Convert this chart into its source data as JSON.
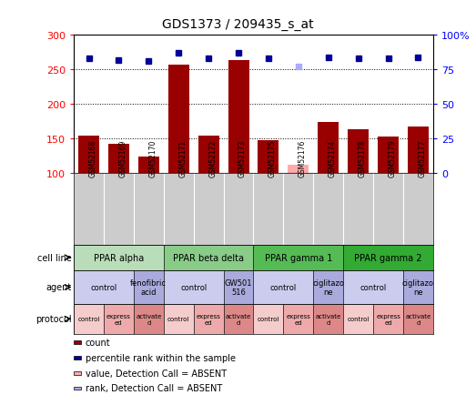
{
  "title": "GDS1373 / 209435_s_at",
  "samples": [
    "GSM52168",
    "GSM52169",
    "GSM52170",
    "GSM52171",
    "GSM52172",
    "GSM52173",
    "GSM52175",
    "GSM52176",
    "GSM52174",
    "GSM52178",
    "GSM52179",
    "GSM52177"
  ],
  "bar_values": [
    155,
    143,
    124,
    257,
    155,
    264,
    148,
    113,
    174,
    164,
    153,
    168
  ],
  "bar_absent": [
    false,
    false,
    false,
    false,
    false,
    false,
    false,
    true,
    false,
    false,
    false,
    false
  ],
  "rank_values": [
    83,
    82,
    81,
    87,
    83,
    87,
    83,
    77,
    84,
    83,
    83,
    84
  ],
  "rank_absent": [
    false,
    false,
    false,
    false,
    false,
    false,
    false,
    true,
    false,
    false,
    false,
    false
  ],
  "bar_color": "#990000",
  "bar_absent_color": "#ffaaaa",
  "rank_color": "#000099",
  "rank_absent_color": "#aaaaff",
  "ylim_left": [
    100,
    300
  ],
  "ylim_right": [
    0,
    100
  ],
  "yticks_left": [
    100,
    150,
    200,
    250,
    300
  ],
  "yticks_right": [
    0,
    25,
    50,
    75,
    100
  ],
  "ytick_labels_right": [
    "0",
    "25",
    "50",
    "75",
    "100%"
  ],
  "cell_lines": [
    {
      "label": "PPAR alpha",
      "span": [
        0,
        3
      ],
      "color": "#b8ddb8"
    },
    {
      "label": "PPAR beta delta",
      "span": [
        3,
        6
      ],
      "color": "#88cc88"
    },
    {
      "label": "PPAR gamma 1",
      "span": [
        6,
        9
      ],
      "color": "#55bb55"
    },
    {
      "label": "PPAR gamma 2",
      "span": [
        9,
        12
      ],
      "color": "#33aa33"
    }
  ],
  "agents": [
    {
      "label": "control",
      "span": [
        0,
        2
      ],
      "color": "#ccccee"
    },
    {
      "label": "fenofibric\nacid",
      "span": [
        2,
        3
      ],
      "color": "#aaaadd"
    },
    {
      "label": "control",
      "span": [
        3,
        5
      ],
      "color": "#ccccee"
    },
    {
      "label": "GW501\n516",
      "span": [
        5,
        6
      ],
      "color": "#aaaadd"
    },
    {
      "label": "control",
      "span": [
        6,
        8
      ],
      "color": "#ccccee"
    },
    {
      "label": "ciglitazo\nne",
      "span": [
        8,
        9
      ],
      "color": "#aaaadd"
    },
    {
      "label": "control",
      "span": [
        9,
        11
      ],
      "color": "#ccccee"
    },
    {
      "label": "ciglitazo\nne",
      "span": [
        11,
        12
      ],
      "color": "#aaaadd"
    }
  ],
  "protocols": [
    {
      "label": "control",
      "span": [
        0,
        1
      ],
      "color": "#f5cccc"
    },
    {
      "label": "express\ned",
      "span": [
        1,
        2
      ],
      "color": "#eeaaaa"
    },
    {
      "label": "activate\nd",
      "span": [
        2,
        3
      ],
      "color": "#dd8888"
    },
    {
      "label": "control",
      "span": [
        3,
        4
      ],
      "color": "#f5cccc"
    },
    {
      "label": "express\ned",
      "span": [
        4,
        5
      ],
      "color": "#eeaaaa"
    },
    {
      "label": "activate\nd",
      "span": [
        5,
        6
      ],
      "color": "#dd8888"
    },
    {
      "label": "control",
      "span": [
        6,
        7
      ],
      "color": "#f5cccc"
    },
    {
      "label": "express\ned",
      "span": [
        7,
        8
      ],
      "color": "#eeaaaa"
    },
    {
      "label": "activate\nd",
      "span": [
        8,
        9
      ],
      "color": "#dd8888"
    },
    {
      "label": "control",
      "span": [
        9,
        10
      ],
      "color": "#f5cccc"
    },
    {
      "label": "express\ned",
      "span": [
        10,
        11
      ],
      "color": "#eeaaaa"
    },
    {
      "label": "activate\nd",
      "span": [
        11,
        12
      ],
      "color": "#dd8888"
    }
  ],
  "row_labels": [
    "cell line",
    "agent",
    "protocol"
  ],
  "legend_items": [
    {
      "color": "#990000",
      "label": "count"
    },
    {
      "color": "#000099",
      "label": "percentile rank within the sample"
    },
    {
      "color": "#ffaaaa",
      "label": "value, Detection Call = ABSENT"
    },
    {
      "color": "#aaaaff",
      "label": "rank, Detection Call = ABSENT"
    }
  ],
  "background_color": "#ffffff",
  "plot_bg": "#ffffff",
  "sample_bg": "#cccccc"
}
